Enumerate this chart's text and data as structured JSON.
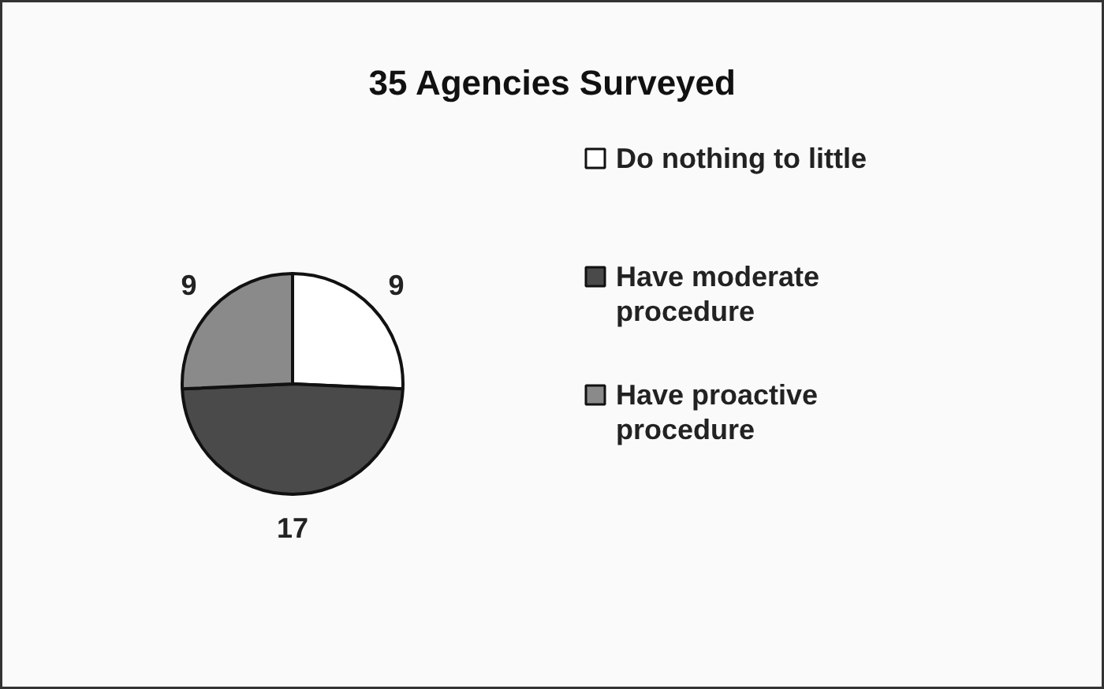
{
  "chart_data": {
    "type": "pie",
    "title": "35 Agencies Surveyed",
    "categories": [
      "Do nothing to little",
      "Have moderate procedure",
      "Have proactive procedure"
    ],
    "values": [
      9,
      17,
      9
    ],
    "colors": [
      "#ffffff",
      "#4a4a4a",
      "#8a8a8a"
    ],
    "data_labels": true,
    "legend": "right"
  }
}
